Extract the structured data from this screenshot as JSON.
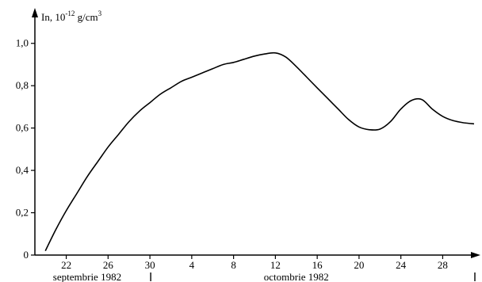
{
  "chart_data": {
    "type": "line",
    "ylabel_main": "In, 10",
    "ylabel_exp": "-12",
    "ylabel_unit": " g/cm",
    "ylabel_unit_exp": "3",
    "ylim": [
      0,
      1.1
    ],
    "yticks": [
      {
        "value": 0,
        "label": "0"
      },
      {
        "value": 0.2,
        "label": "0,2"
      },
      {
        "value": 0.4,
        "label": "0,4"
      },
      {
        "value": 0.6,
        "label": "0,6"
      },
      {
        "value": 0.8,
        "label": "0,8"
      },
      {
        "value": 1.0,
        "label": "1,0"
      }
    ],
    "xrange_days": [
      19,
      61
    ],
    "xticks": [
      {
        "day": 22,
        "label": "22"
      },
      {
        "day": 26,
        "label": "26"
      },
      {
        "day": 30,
        "label": "30"
      },
      {
        "day": 34,
        "label": "4"
      },
      {
        "day": 38,
        "label": "8"
      },
      {
        "day": 42,
        "label": "12"
      },
      {
        "day": 46,
        "label": "16"
      },
      {
        "day": 50,
        "label": "20"
      },
      {
        "day": 54,
        "label": "24"
      },
      {
        "day": 58,
        "label": "28"
      }
    ],
    "month_labels": [
      {
        "label": "septembrie 1982",
        "day": 24
      },
      {
        "label": "octombrie 1982",
        "day": 44
      }
    ],
    "month_dividers": [
      30,
      61
    ],
    "grid": false,
    "legend": "none",
    "series": [
      {
        "x": [
          "1982-09-20",
          "1982-09-21",
          "1982-09-22",
          "1982-09-23",
          "1982-09-24",
          "1982-09-25",
          "1982-09-26",
          "1982-09-27",
          "1982-09-28",
          "1982-09-29",
          "1982-09-30",
          "1982-10-01",
          "1982-10-02",
          "1982-10-03",
          "1982-10-04",
          "1982-10-05",
          "1982-10-06",
          "1982-10-07",
          "1982-10-08",
          "1982-10-09",
          "1982-10-10",
          "1982-10-11",
          "1982-10-12",
          "1982-10-13",
          "1982-10-14",
          "1982-10-15",
          "1982-10-16",
          "1982-10-17",
          "1982-10-18",
          "1982-10-19",
          "1982-10-20",
          "1982-10-21",
          "1982-10-22",
          "1982-10-23",
          "1982-10-24",
          "1982-10-25",
          "1982-10-26",
          "1982-10-27",
          "1982-10-28",
          "1982-10-29",
          "1982-10-30",
          "1982-10-31"
        ],
        "y": [
          0.02,
          0.12,
          0.21,
          0.29,
          0.37,
          0.44,
          0.51,
          0.57,
          0.63,
          0.68,
          0.72,
          0.76,
          0.79,
          0.82,
          0.84,
          0.86,
          0.88,
          0.9,
          0.91,
          0.925,
          0.94,
          0.95,
          0.955,
          0.935,
          0.89,
          0.84,
          0.79,
          0.74,
          0.69,
          0.64,
          0.605,
          0.592,
          0.595,
          0.63,
          0.69,
          0.73,
          0.735,
          0.69,
          0.655,
          0.635,
          0.625,
          0.62
        ]
      }
    ]
  }
}
